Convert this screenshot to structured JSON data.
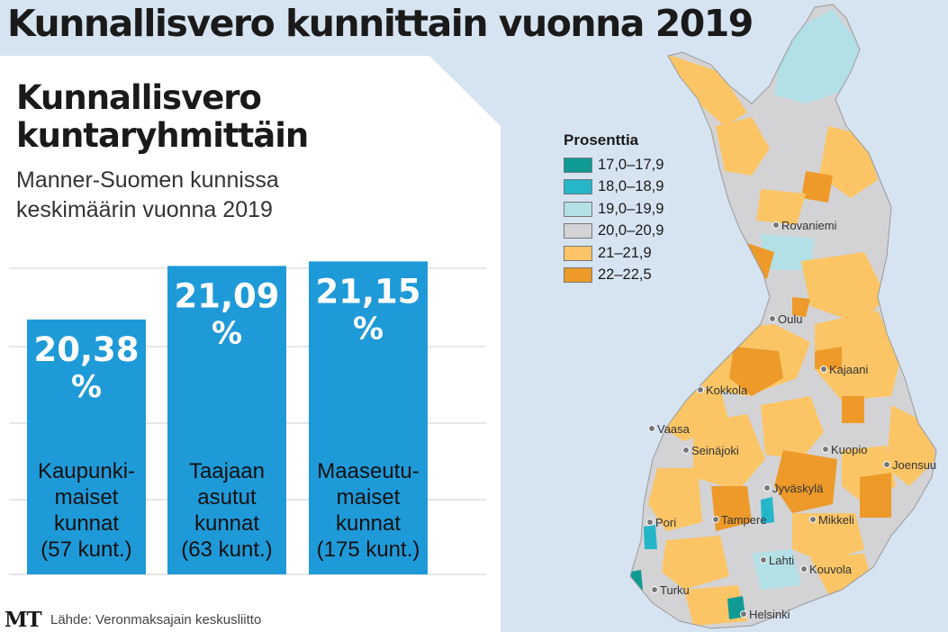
{
  "header": {
    "title": "Kunnallisvero kunnittain vuonna 2019"
  },
  "chart_data": {
    "type": "bar",
    "title": "Kunnallisvero kuntaryhmittäin",
    "subtitle": "Manner-Suomen kunnissa keskimäärin vuonna 2019",
    "categories": [
      "Kaupunki-maiset kunnat (57 kunt.)",
      "Taajaan asutut kunnat (63 kunt.)",
      "Maaseutu-maiset kunnat (175 kunt.)"
    ],
    "category_lines": [
      [
        "Kaupunki-",
        "maiset",
        "kunnat",
        "(57 kunt.)"
      ],
      [
        "Taajaan",
        "asutut",
        "kunnat",
        "(63 kunt.)"
      ],
      [
        "Maaseutu-",
        "maiset",
        "kunnat",
        "(175 kunt.)"
      ]
    ],
    "values": [
      20.38,
      21.09,
      21.15
    ],
    "value_labels": [
      [
        "20,38",
        "%"
      ],
      [
        "21,09",
        "%"
      ],
      [
        "21,15",
        "%"
      ]
    ],
    "grid": true,
    "bar_color": "#1f9ad8"
  },
  "map": {
    "legend_title": "Prosenttia",
    "legend": [
      {
        "label": "17,0–17,9",
        "color": "#0f9a94"
      },
      {
        "label": "18,0–18,9",
        "color": "#25b6c9"
      },
      {
        "label": "19,0–19,9",
        "color": "#b3e0e6"
      },
      {
        "label": "20,0–20,9",
        "color": "#d3d3d5"
      },
      {
        "label": "21–21,9",
        "color": "#fbc566"
      },
      {
        "label": "22–22,5",
        "color": "#ed9a2a"
      }
    ],
    "cities": [
      "Rovaniemi",
      "Oulu",
      "Kajaani",
      "Kokkola",
      "Vaasa",
      "Seinäjoki",
      "Kuopio",
      "Joensuu",
      "Jyväskylä",
      "Pori",
      "Tampere",
      "Mikkeli",
      "Lahti",
      "Kouvola",
      "Turku",
      "Helsinki"
    ]
  },
  "footer": {
    "logo": "MT",
    "source": "Lähde: Veronmaksajain keskusliitto"
  }
}
